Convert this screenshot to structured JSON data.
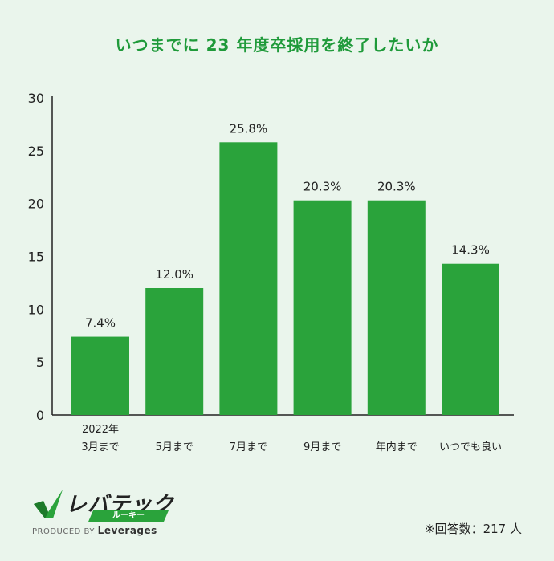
{
  "chart_data": {
    "type": "bar",
    "title": "いつまでに 23 年度卒採用を終了したいか",
    "categories": [
      [
        "2022年",
        "3月まで"
      ],
      [
        "5月まで"
      ],
      [
        "7月まで"
      ],
      [
        "9月まで"
      ],
      [
        "年内まで"
      ],
      [
        "いつでも良い"
      ]
    ],
    "values": [
      7.4,
      12.0,
      25.8,
      20.3,
      20.3,
      14.3
    ],
    "value_labels": [
      "7.4%",
      "12.0%",
      "25.8%",
      "20.3%",
      "20.3%",
      "14.3%"
    ],
    "yticks": [
      "0",
      "5",
      "10",
      "15",
      "20",
      "25",
      "30"
    ],
    "ylim": [
      0,
      30
    ],
    "xlabel": "",
    "ylabel": "",
    "bar_color": "#2aa33b",
    "grid": false
  },
  "logo": {
    "main": "レバテック",
    "sub": "ルーキー",
    "produced_by": "PRODUCED BY",
    "brand": "Leverages"
  },
  "note": "※回答数：217 人"
}
